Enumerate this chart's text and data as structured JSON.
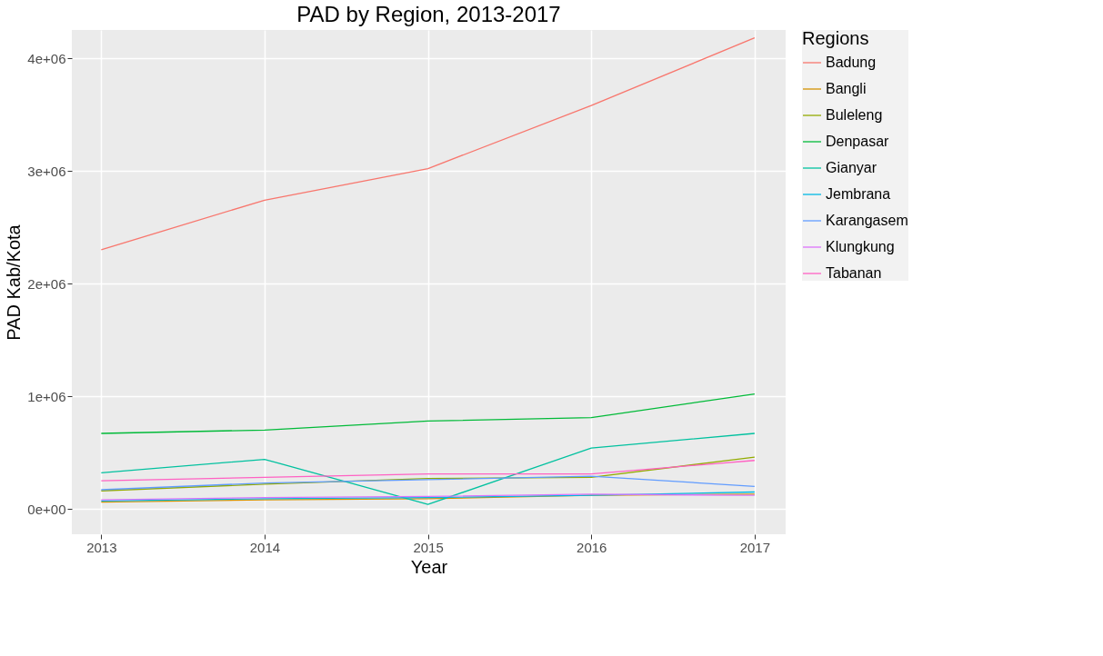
{
  "chart_data": {
    "type": "line",
    "title": "PAD by Region, 2013-2017",
    "xlabel": "Year",
    "ylabel": "PAD Kab/Kota",
    "legend_title": "Regions",
    "legend": "right",
    "grid": true,
    "x": [
      2013,
      2014,
      2015,
      2016,
      2017
    ],
    "xlim": [
      2012.82,
      2017.19
    ],
    "xticks": [
      2013,
      2014,
      2015,
      2016,
      2017
    ],
    "ylim": [
      -225000,
      4250000
    ],
    "yticks": [
      {
        "value": 0,
        "label": "0e+00"
      },
      {
        "value": 1000000,
        "label": "1e+06"
      },
      {
        "value": 2000000,
        "label": "2e+06"
      },
      {
        "value": 3000000,
        "label": "3e+06"
      },
      {
        "value": 4000000,
        "label": "4e+06"
      }
    ],
    "series": [
      {
        "name": "Badung",
        "color": "#f8766d",
        "values": [
          2300000,
          2740000,
          3020000,
          3580000,
          4180000
        ]
      },
      {
        "name": "Bangli",
        "color": "#d39200",
        "values": [
          60000,
          80000,
          90000,
          120000,
          130000
        ]
      },
      {
        "name": "Buleleng",
        "color": "#93aa00",
        "values": [
          160000,
          220000,
          270000,
          280000,
          460000
        ]
      },
      {
        "name": "Denpasar",
        "color": "#00ba38",
        "values": [
          670000,
          700000,
          780000,
          810000,
          1020000
        ]
      },
      {
        "name": "Gianyar",
        "color": "#00c19f",
        "values": [
          320000,
          440000,
          40000,
          540000,
          670000
        ]
      },
      {
        "name": "Jembrana",
        "color": "#00b9e3",
        "values": [
          70000,
          90000,
          100000,
          120000,
          150000
        ]
      },
      {
        "name": "Karangasem",
        "color": "#619cff",
        "values": [
          170000,
          230000,
          260000,
          290000,
          200000
        ]
      },
      {
        "name": "Klungkung",
        "color": "#db72fb",
        "values": [
          80000,
          100000,
          110000,
          130000,
          120000
        ]
      },
      {
        "name": "Tabanan",
        "color": "#ff61c3",
        "values": [
          250000,
          280000,
          310000,
          310000,
          430000
        ]
      }
    ]
  }
}
